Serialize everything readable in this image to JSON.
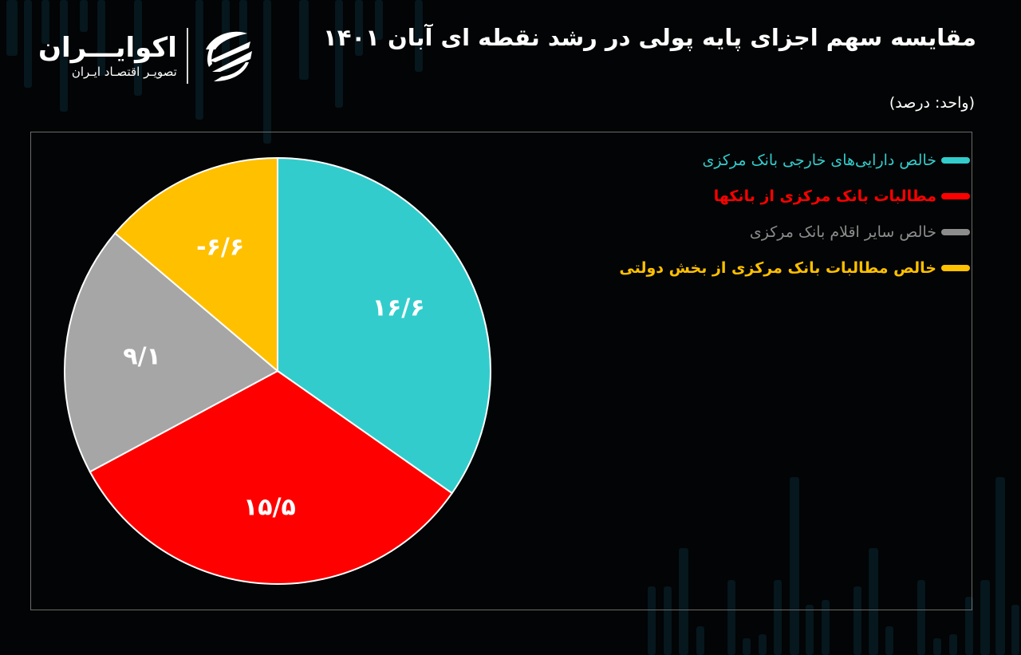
{
  "header": {
    "title": "مقایسه سهم اجزای پایه پولی در رشد نقطه ای آبان ۱۴۰۱",
    "unit": "(واحد: درصد)"
  },
  "logo": {
    "name": "اکوایـــران",
    "subtitle": "تصویـر اقتصـاد ایـران",
    "icon": "ecoiran-swoosh-icon"
  },
  "colors": {
    "teal": "#33cccc",
    "red": "#ff0000",
    "gray": "#a6a6a6",
    "yellow": "#ffc000",
    "background": "#020405"
  },
  "chart_data": {
    "type": "pie",
    "title": "مقایسه سهم اجزای پایه پولی در رشد نقطه ای آبان ۱۴۰۱",
    "subtitle": "(واحد: درصد)",
    "categories": [
      "خالص دارایی‌های خارجی بانک مرکزی",
      "مطالبات بانک مرکزی از بانکها",
      "خالص سایر اقلام بانک مرکزی",
      "خالص مطالبات بانک مرکزی از بخش دولتی"
    ],
    "values": [
      16.6,
      15.5,
      9.1,
      -6.6
    ],
    "value_labels": [
      "۱۶/۶",
      "۱۵/۵",
      "۹/۱",
      "-۶/۶"
    ],
    "colors": [
      "#33cccc",
      "#ff0000",
      "#a6a6a6",
      "#ffc000"
    ],
    "legend_position": "right",
    "start_angle": "top, clockwise",
    "grid": false
  },
  "legend": {
    "items": [
      {
        "label": "خالص دارایی‌های خارجی بانک مرکزی",
        "color": "#33cccc"
      },
      {
        "label": "مطالبات بانک مرکزی از بانکها",
        "color": "#ff0000"
      },
      {
        "label": "خالص سایر اقلام بانک مرکزی",
        "color": "#a6a6a6"
      },
      {
        "label": "خالص مطالبات بانک مرکزی از بخش دولتی",
        "color": "#ffc000"
      }
    ]
  }
}
